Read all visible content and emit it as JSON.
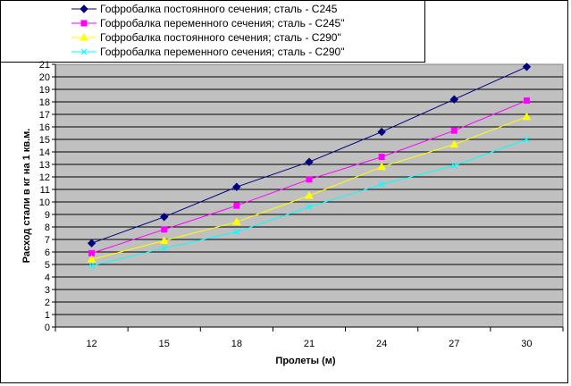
{
  "chart_data": {
    "type": "line",
    "title": "",
    "xlabel": "Пролеты (м)",
    "ylabel": "Расход стали в кг на 1 кв.м.",
    "x": [
      12,
      15,
      18,
      21,
      24,
      27,
      30
    ],
    "ylim": [
      0,
      21
    ],
    "yticks": [
      0,
      1,
      2,
      3,
      4,
      5,
      6,
      7,
      8,
      9,
      10,
      11,
      12,
      13,
      14,
      15,
      16,
      17,
      18,
      19,
      20,
      21
    ],
    "grid": true,
    "plot_background": "#c0c0c0",
    "legend_position": "top",
    "series": [
      {
        "name": "Гофробалка постоянного сечения; сталь - С245",
        "values": [
          6.7,
          8.8,
          11.2,
          13.2,
          15.6,
          18.2,
          20.8
        ],
        "color": "#000080",
        "marker": "diamond"
      },
      {
        "name": "Гофробалка переменного сечения; сталь - С245\"",
        "values": [
          5.9,
          7.8,
          9.7,
          11.8,
          13.6,
          15.7,
          18.1
        ],
        "color": "#ff00ff",
        "marker": "square"
      },
      {
        "name": "Гофробалка постоянного сечения; сталь - С290\"",
        "values": [
          5.4,
          6.9,
          8.4,
          10.5,
          12.8,
          14.6,
          16.8
        ],
        "color": "#ffff00",
        "marker": "triangle"
      },
      {
        "name": "Гофробалка переменного сечения; сталь - С290\"",
        "values": [
          4.9,
          6.3,
          7.6,
          9.6,
          11.4,
          12.9,
          15.0
        ],
        "color": "#00ffff",
        "marker": "x"
      }
    ]
  }
}
